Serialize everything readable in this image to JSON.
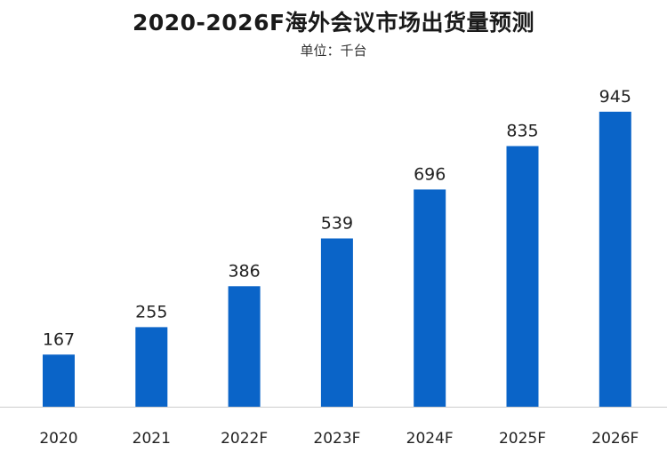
{
  "chart_data": {
    "type": "bar",
    "title": "2020-2026F海外会议市场出货量预测",
    "subtitle": "单位：千台",
    "categories": [
      "2020",
      "2021",
      "2022F",
      "2023F",
      "2024F",
      "2025F",
      "2026F"
    ],
    "values": [
      167,
      255,
      386,
      539,
      696,
      835,
      945
    ],
    "xlabel": "",
    "ylabel": "",
    "ylim": [
      0,
      1000
    ],
    "grid": false,
    "legend": "none",
    "bar_color": "#0a64c8",
    "axis_color": "#cccccc"
  }
}
